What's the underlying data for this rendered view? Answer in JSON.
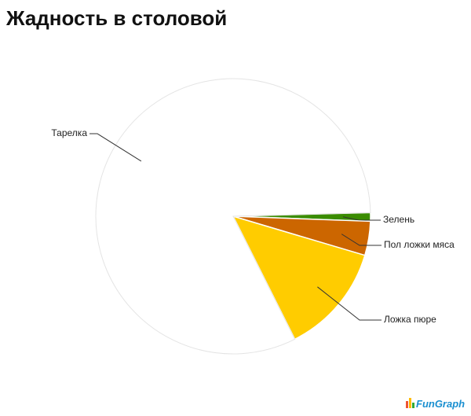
{
  "chart_data": {
    "type": "pie",
    "title": "Жадность в столовой",
    "categories": [
      "Зелень",
      "Пол ложки мяса",
      "Ложка пюре",
      "Тарелка"
    ],
    "values": [
      1,
      4,
      13,
      82
    ],
    "colors": [
      "#3a8c00",
      "#cc6600",
      "#ffcc00",
      "#ffffff"
    ],
    "watermark": "FunGraph"
  }
}
